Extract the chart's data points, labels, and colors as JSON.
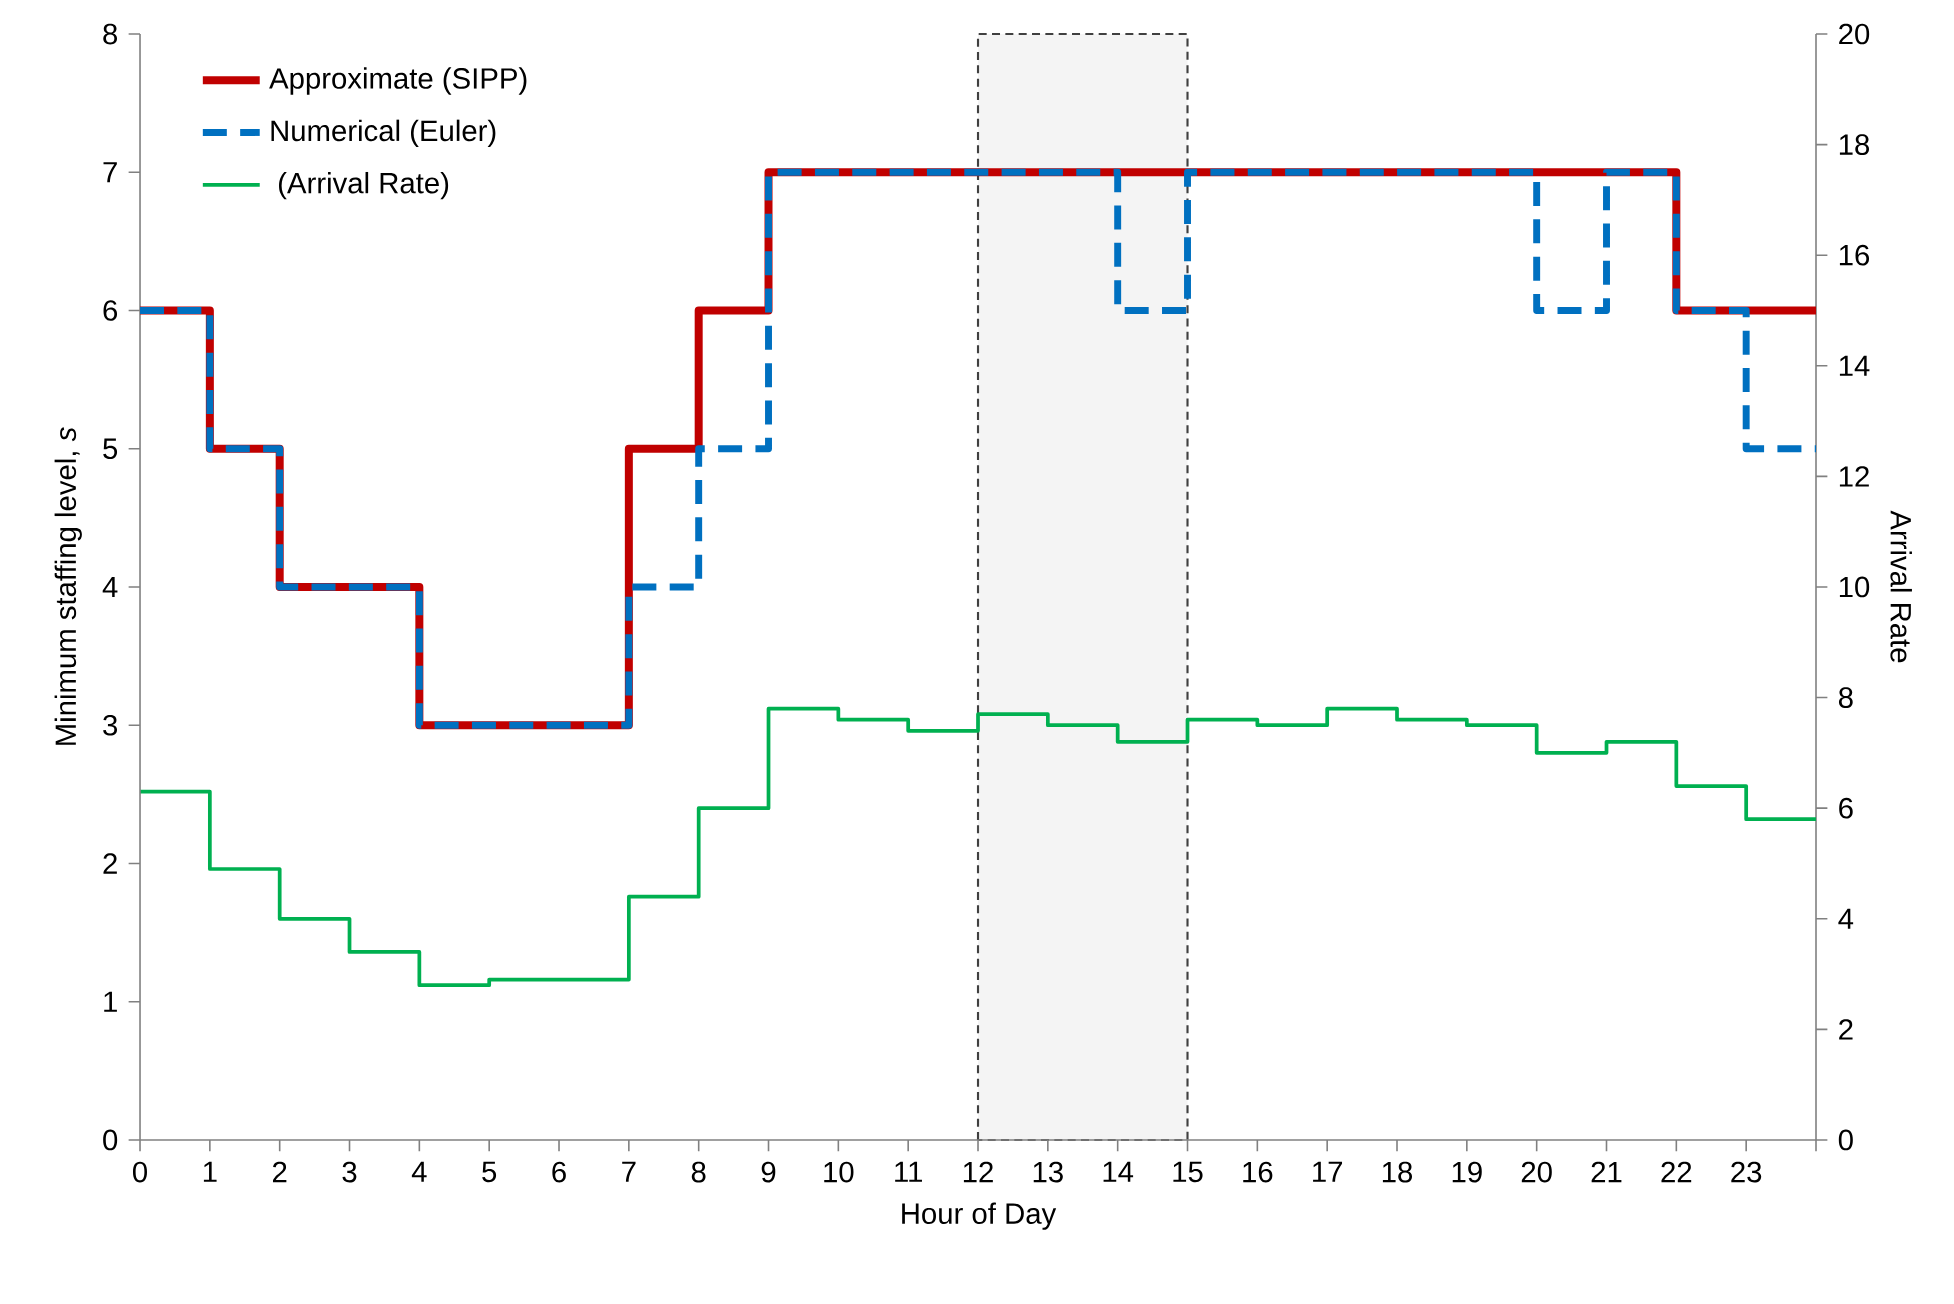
{
  "chart_data": {
    "type": "step",
    "xlabel": "Hour of Day",
    "ylabel": "Minimum staffing level, *s*",
    "y2label": "Arrival Rate",
    "x": [
      0,
      1,
      2,
      3,
      4,
      5,
      6,
      7,
      8,
      9,
      10,
      11,
      12,
      13,
      14,
      15,
      16,
      17,
      18,
      19,
      20,
      21,
      22,
      23,
      24
    ],
    "series": [
      {
        "name": "Approximate (SIPP)",
        "color": "#c00000",
        "line_style": "solid",
        "values": [
          6,
          5,
          4,
          4,
          3,
          3,
          3,
          5,
          6,
          7,
          7,
          7,
          7,
          7,
          7,
          7,
          7,
          7,
          7,
          7,
          7,
          7,
          6,
          6,
          6
        ]
      },
      {
        "name": "Numerical (Euler)",
        "color": "#0070c0",
        "line_style": "dashed",
        "values": [
          6,
          5,
          4,
          4,
          3,
          3,
          3,
          4,
          5,
          7,
          7,
          7,
          7,
          7,
          6,
          7,
          7,
          7,
          7,
          7,
          6,
          7,
          6,
          5,
          5
        ]
      },
      {
        "name": " (Arrival Rate)",
        "color": "#00b050",
        "line_style": "solid",
        "axis": "y2",
        "values": [
          6.3,
          4.9,
          4.0,
          3.4,
          2.8,
          2.9,
          2.9,
          4.4,
          6.0,
          7.8,
          7.6,
          7.4,
          7.7,
          7.5,
          7.2,
          7.6,
          7.5,
          7.8,
          7.6,
          7.5,
          7.0,
          7.2,
          6.4,
          5.8,
          5.8
        ]
      }
    ],
    "xlim": [
      0,
      24
    ],
    "xticks": [
      0,
      1,
      2,
      3,
      4,
      5,
      6,
      7,
      8,
      9,
      10,
      11,
      12,
      13,
      14,
      15,
      16,
      17,
      18,
      19,
      20,
      21,
      22,
      23,
      {
        "value": 24,
        "label": null
      }
    ],
    "ylim": [
      0,
      8
    ],
    "yticks": [
      0,
      1,
      2,
      3,
      4,
      5,
      6,
      7,
      8
    ],
    "y2lim": [
      0,
      20
    ],
    "y2ticks": [
      0,
      2,
      4,
      6,
      8,
      10,
      12,
      14,
      16,
      18,
      20
    ],
    "bands": [
      {
        "axis": "x",
        "from": 12,
        "to": 15,
        "color": "#404040"
      }
    ],
    "legend": "top left",
    "grid": false,
    "marker": "none"
  }
}
